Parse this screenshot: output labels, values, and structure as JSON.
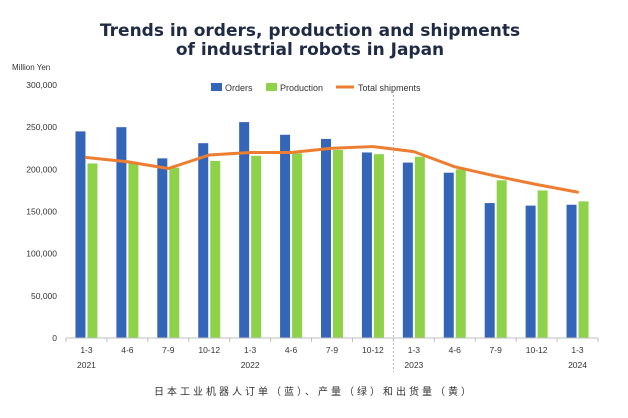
{
  "chart_data": {
    "type": "bar",
    "title": "Trends in orders, production and shipments",
    "title_line2": "of industrial robots in Japan",
    "unit_label": "Million Yen",
    "categories": [
      "1-3",
      "4-6",
      "7-9",
      "10-12",
      "1-3",
      "4-6",
      "7-9",
      "10-12",
      "1-3",
      "4-6",
      "7-9",
      "10-12",
      "1-3"
    ],
    "year_labels": [
      {
        "index": 0,
        "label": "2021"
      },
      {
        "index": 4,
        "label": "2022"
      },
      {
        "index": 8,
        "label": "2023"
      },
      {
        "index": 12,
        "label": "2024"
      }
    ],
    "series": [
      {
        "name": "Orders",
        "kind": "bar",
        "color": "#3465b8",
        "values": [
          245000,
          250000,
          213000,
          231000,
          256000,
          241000,
          236000,
          220000,
          208000,
          196000,
          160000,
          157000,
          158000
        ]
      },
      {
        "name": "Production",
        "kind": "bar",
        "color": "#8ed24a",
        "values": [
          207000,
          208000,
          202000,
          210000,
          216000,
          219000,
          223000,
          218000,
          215000,
          200000,
          187000,
          175000,
          162000
        ]
      },
      {
        "name": "Total shipments",
        "kind": "line",
        "color": "#ed7d31",
        "values": [
          214000,
          209000,
          201000,
          217000,
          220000,
          220000,
          225000,
          227000,
          221000,
          203000,
          192000,
          182000,
          173000
        ]
      }
    ],
    "yticks": [
      0,
      50000,
      100000,
      150000,
      200000,
      250000,
      300000
    ],
    "ytick_labels": [
      "0",
      "50,000",
      "100,000",
      "150,000",
      "200,000",
      "250,000",
      "300,000"
    ],
    "ylim": [
      0,
      300000
    ],
    "separator_after_category": 7,
    "grid": false,
    "legend_position": "top"
  },
  "caption": "日本工业机器人订单（蓝）、产量（绿）和出货量（黄）"
}
